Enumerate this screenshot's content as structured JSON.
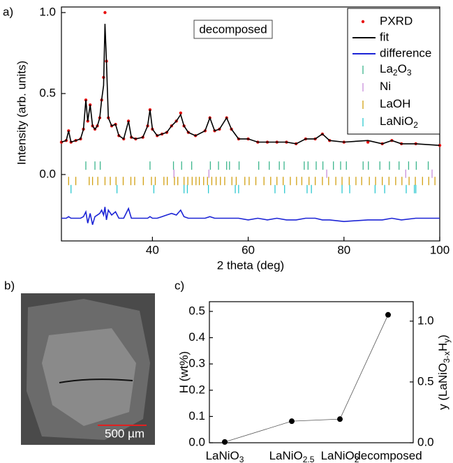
{
  "charts": [
    {
      "type": "pxrd",
      "panel_label": "a)",
      "annotation": "decomposed",
      "x_label": "2 theta (deg)",
      "y_label": "Intensity (arb. units)",
      "xlim": [
        21,
        100
      ],
      "xticks": [
        40,
        60,
        80,
        100
      ],
      "ylim": [
        -0.41,
        1.0
      ],
      "yticks": [
        {
          "value": 0,
          "label": "0.0"
        },
        {
          "value": 0.5,
          "label": "0.5"
        },
        {
          "value": 1,
          "label": "1.0"
        }
      ],
      "series": [
        {
          "name": "PXRD",
          "style": "dots",
          "color": "#e8100f",
          "x": [
            21,
            22,
            22.5,
            23,
            24,
            25,
            25.6,
            26.1,
            26.5,
            27,
            27.5,
            28,
            28.5,
            29,
            29.4,
            29.8,
            30.1,
            30.4,
            30.8,
            31.5,
            32.3,
            33,
            34,
            35,
            35.6,
            36.5,
            38,
            39,
            39.5,
            40,
            41,
            42,
            43,
            44,
            45,
            45.9,
            46.6,
            47.5,
            49,
            51,
            52,
            53,
            54,
            55.5,
            56.5,
            58,
            60,
            62,
            64,
            66,
            68,
            70,
            72,
            74,
            75.5,
            77,
            80,
            85,
            88,
            90,
            92,
            95,
            100
          ],
          "values": [
            0.2,
            0.21,
            0.27,
            0.2,
            0.21,
            0.22,
            0.28,
            0.46,
            0.33,
            0.43,
            0.3,
            0.28,
            0.3,
            0.35,
            0.46,
            0.6,
            1.0,
            0.7,
            0.35,
            0.3,
            0.31,
            0.24,
            0.22,
            0.33,
            0.23,
            0.22,
            0.23,
            0.3,
            0.4,
            0.28,
            0.24,
            0.25,
            0.26,
            0.3,
            0.33,
            0.38,
            0.3,
            0.26,
            0.24,
            0.27,
            0.35,
            0.27,
            0.28,
            0.35,
            0.28,
            0.22,
            0.22,
            0.2,
            0.2,
            0.2,
            0.2,
            0.19,
            0.22,
            0.22,
            0.25,
            0.21,
            0.2,
            0.2,
            0.19,
            0.21,
            0.19,
            0.19,
            0.18
          ]
        },
        {
          "name": "fit",
          "style": "line",
          "color": "#000000",
          "x": [
            21,
            22,
            22.5,
            23,
            24,
            25,
            25.6,
            26.1,
            26.5,
            27,
            27.5,
            28,
            28.5,
            29,
            29.4,
            29.8,
            30.1,
            30.4,
            30.8,
            31.5,
            32.3,
            33,
            34,
            35,
            35.6,
            36.5,
            38,
            39,
            39.5,
            40,
            41,
            42,
            43,
            44,
            45,
            45.9,
            46.6,
            47.5,
            49,
            51,
            52,
            53,
            54,
            55.5,
            56.5,
            58,
            60,
            62,
            64,
            66,
            68,
            70,
            72,
            74,
            75.5,
            77,
            80,
            85,
            88,
            90,
            92,
            95,
            100
          ],
          "values": [
            0.2,
            0.21,
            0.27,
            0.2,
            0.21,
            0.22,
            0.28,
            0.46,
            0.33,
            0.43,
            0.3,
            0.28,
            0.3,
            0.35,
            0.46,
            0.55,
            0.93,
            0.7,
            0.35,
            0.3,
            0.31,
            0.24,
            0.22,
            0.33,
            0.23,
            0.22,
            0.23,
            0.3,
            0.4,
            0.28,
            0.24,
            0.25,
            0.26,
            0.3,
            0.33,
            0.37,
            0.3,
            0.26,
            0.24,
            0.27,
            0.35,
            0.27,
            0.28,
            0.35,
            0.28,
            0.22,
            0.22,
            0.2,
            0.2,
            0.2,
            0.2,
            0.19,
            0.22,
            0.22,
            0.25,
            0.21,
            0.2,
            0.21,
            0.19,
            0.21,
            0.19,
            0.19,
            0.18
          ]
        },
        {
          "name": "difference",
          "style": "line",
          "color": "#1c24d6",
          "x": [
            21,
            22,
            22.5,
            23,
            24,
            25,
            25.6,
            26.1,
            26.5,
            27,
            27.5,
            28,
            28.5,
            29,
            29.4,
            29.8,
            30.1,
            30.4,
            30.8,
            31.5,
            32.3,
            33,
            34,
            35,
            35.6,
            36.5,
            38,
            39,
            39.5,
            40,
            41,
            42,
            43,
            44,
            45,
            45.9,
            46.6,
            47.5,
            49,
            51,
            52,
            53,
            54,
            55.5,
            56.5,
            58,
            60,
            62,
            64,
            66,
            68,
            70,
            72,
            74,
            75.5,
            77,
            80,
            85,
            88,
            90,
            92,
            95,
            100
          ],
          "values": [
            -0.27,
            -0.27,
            -0.26,
            -0.27,
            -0.27,
            -0.27,
            -0.26,
            -0.23,
            -0.3,
            -0.24,
            -0.31,
            -0.26,
            -0.25,
            -0.24,
            -0.22,
            -0.25,
            -0.2,
            -0.28,
            -0.22,
            -0.25,
            -0.23,
            -0.27,
            -0.27,
            -0.21,
            -0.27,
            -0.27,
            -0.27,
            -0.27,
            -0.26,
            -0.27,
            -0.27,
            -0.26,
            -0.25,
            -0.24,
            -0.25,
            -0.22,
            -0.26,
            -0.27,
            -0.27,
            -0.27,
            -0.26,
            -0.27,
            -0.27,
            -0.27,
            -0.27,
            -0.27,
            -0.28,
            -0.27,
            -0.28,
            -0.27,
            -0.28,
            -0.28,
            -0.27,
            -0.27,
            -0.28,
            -0.28,
            -0.29,
            -0.28,
            -0.28,
            -0.27,
            -0.28,
            -0.27,
            -0.27
          ]
        }
      ],
      "phases": [
        {
          "name": [
            "La",
            "2",
            "O",
            "3"
          ],
          "color": "#3bb58c",
          "positions": [
            26.1,
            28.0,
            29.1,
            39.5,
            44.4,
            46.1,
            48.2,
            52.1,
            53.8,
            55.5,
            56.1,
            58.1,
            62.2,
            64.4,
            66.5,
            67.5,
            71.7,
            72.5,
            74.2,
            75.6,
            77.8,
            79.3,
            80.5,
            84.0,
            85.1,
            87.5,
            89.5,
            91.5,
            93.5,
            95.1,
            97.6
          ]
        },
        {
          "name": [
            "Ni"
          ],
          "color": "#c88fdc",
          "positions": [
            44.5,
            51.8,
            76.4,
            92.9,
            98.4
          ]
        },
        {
          "name": [
            "LaOH"
          ],
          "color": "#d2a012",
          "positions": [
            22.5,
            24,
            26.8,
            27.5,
            28.6,
            30.1,
            31.2,
            32.4,
            33.9,
            35.5,
            36.3,
            38.1,
            39.8,
            40.6,
            42.4,
            43.1,
            44.6,
            45.3,
            46.6,
            47.4,
            48.3,
            49.1,
            49.8,
            50.7,
            51.5,
            52.4,
            53.3,
            54.2,
            55.1,
            56.6,
            57.5,
            59.3,
            60.2,
            61.6,
            63.3,
            64.7,
            66.0,
            67.3,
            68.8,
            70.1,
            71.2,
            72.7,
            74.0,
            75.5,
            76.8,
            78.3,
            79.6,
            81.1,
            82.5,
            83.7,
            85.3,
            86.6,
            88.0,
            89.4,
            90.8,
            92.1,
            93.6,
            94.9,
            96.4,
            97.7,
            99.0
          ]
        },
        {
          "name": [
            "LaNiO",
            "2"
          ],
          "color": "#2cc8d0",
          "positions": [
            23.0,
            32.6,
            40.3,
            46.6,
            47.3,
            51.7,
            57.3,
            58.0,
            65.6,
            67.6,
            72.3,
            73.2,
            79.6,
            81.2,
            86.5,
            88.5,
            93.0,
            94.7,
            95.0
          ]
        }
      ]
    },
    {
      "type": "image",
      "panel_label": "b)",
      "scale_bar": "500 µm"
    },
    {
      "type": "scatter-line",
      "panel_label": "c)",
      "y_label": [
        "H (wt%)"
      ],
      "y2_label": [
        "y (LaNiO",
        "3-x",
        "H",
        "y",
        ")"
      ],
      "categories": [
        [
          "LaNiO",
          "3"
        ],
        [
          "LaNiO",
          "2.5"
        ],
        [
          "LaNiO",
          "2"
        ],
        [
          "decomposed"
        ]
      ],
      "values": [
        0.003,
        0.082,
        0.09,
        0.487
      ],
      "errors": [
        0.004,
        0.005,
        0.004,
        0.006
      ],
      "color": "#000000",
      "ylim": [
        0,
        0.537
      ],
      "yticks": [
        {
          "value": 0,
          "label": "0.0"
        },
        {
          "value": 0.1,
          "label": "0.1"
        },
        {
          "value": 0.2,
          "label": "0.2"
        },
        {
          "value": 0.3,
          "label": "0.3"
        },
        {
          "value": 0.4,
          "label": "0.4"
        },
        {
          "value": 0.5,
          "label": "0.5"
        }
      ],
      "y2lim": [
        0,
        1.16
      ],
      "y2ticks": [
        {
          "value": 0,
          "label": "0.0"
        },
        {
          "value": 0.5,
          "label": "0.5"
        },
        {
          "value": 1,
          "label": "1.0"
        }
      ]
    }
  ]
}
